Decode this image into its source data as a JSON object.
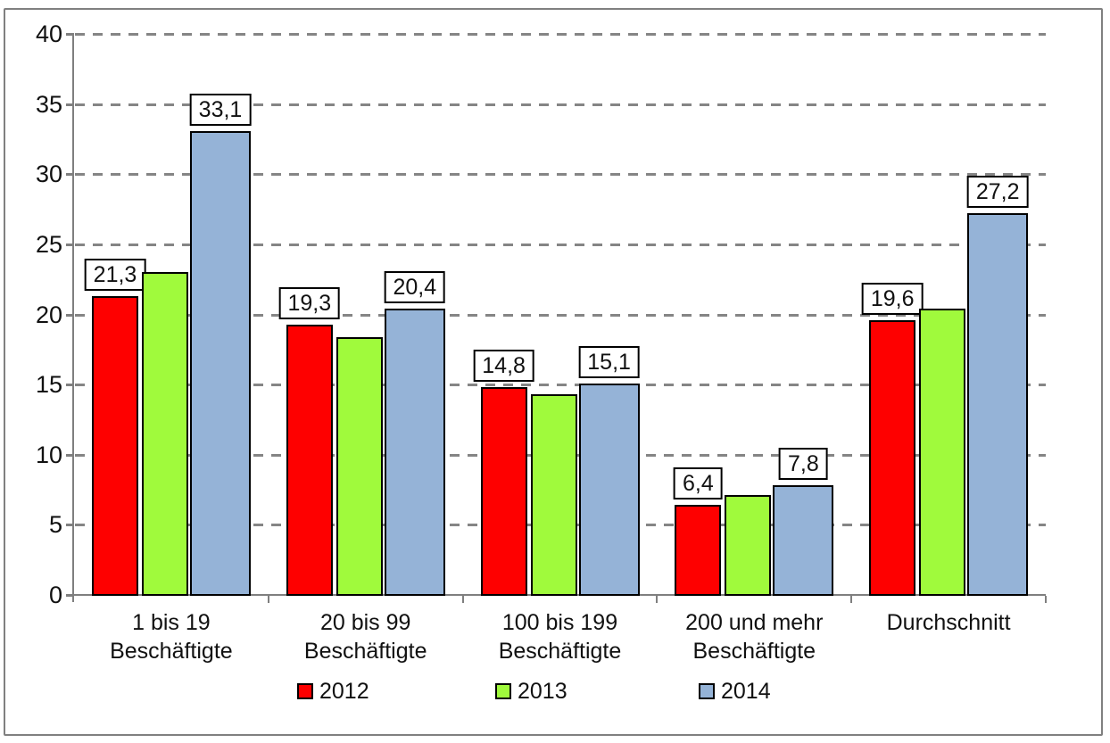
{
  "chart_data": {
    "type": "bar",
    "categories": [
      "1 bis 19 Beschäftigte",
      "20 bis 99 Beschäftigte",
      "100 bis 199 Beschäftigte",
      "200 und mehr Beschäftigte",
      "Durchschnitt"
    ],
    "category_label_lines": [
      [
        "1 bis 19 Beschäftigte"
      ],
      [
        "20 bis 99 Beschäftigte"
      ],
      [
        "100 bis 199",
        "Beschäftigte"
      ],
      [
        "200 und mehr",
        "Beschäftigte"
      ],
      [
        "Durchschnitt"
      ]
    ],
    "series": [
      {
        "name": "2012",
        "color": "#fe0000",
        "values": [
          21.3,
          19.3,
          14.8,
          6.4,
          19.6
        ],
        "show_labels": true,
        "data_labels": [
          "21,3",
          "19,3",
          "14,8",
          "6,4",
          "19,6"
        ]
      },
      {
        "name": "2013",
        "color": "#a0fa3c",
        "values": [
          23.0,
          18.4,
          14.3,
          7.1,
          20.4
        ],
        "show_labels": false,
        "data_labels": null
      },
      {
        "name": "2014",
        "color": "#95b3d7",
        "values": [
          33.1,
          20.4,
          15.1,
          7.8,
          27.2
        ],
        "show_labels": true,
        "data_labels": [
          "33,1",
          "20,4",
          "15,1",
          "7,8",
          "27,2"
        ]
      }
    ],
    "ylim": [
      0,
      40
    ],
    "yticks": [
      0,
      5,
      10,
      15,
      20,
      25,
      30,
      35,
      40
    ],
    "xlabel": "",
    "ylabel": "",
    "grid": "horizontal-dashed",
    "legend_position": "bottom",
    "legend": [
      "2012",
      "2013",
      "2014"
    ]
  },
  "colors": {
    "axis": "#7f7f7f",
    "gridline": "#858585",
    "frame_border": "#808080",
    "bar_border": "#000000",
    "value_label_bg": "#ffffff",
    "value_label_border": "#000000",
    "series_2012": "#fe0000",
    "series_2013": "#a0fa3c",
    "series_2014": "#95b3d7"
  }
}
